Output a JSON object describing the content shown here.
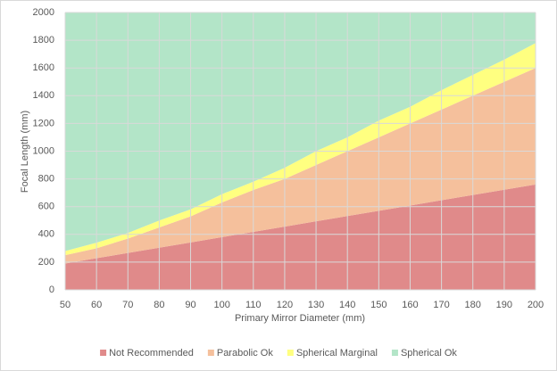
{
  "chart_data": {
    "type": "stacked-area",
    "x_label": "Primary Mirror Diameter (mm)",
    "y_label": "Focal Length (mm)",
    "x": [
      50,
      60,
      70,
      80,
      90,
      100,
      110,
      120,
      130,
      140,
      150,
      160,
      170,
      180,
      190,
      200
    ],
    "series": [
      {
        "name": "Not Recommended",
        "color": "#e08a8a",
        "values": [
          190,
          228,
          266,
          304,
          342,
          380,
          418,
          456,
          494,
          532,
          570,
          608,
          646,
          684,
          722,
          760
        ]
      },
      {
        "name": "Parabolic Ok",
        "color": "#f5c09c",
        "values": [
          60,
          72,
          104,
          146,
          188,
          250,
          302,
          344,
          406,
          468,
          530,
          592,
          654,
          716,
          778,
          840
        ]
      },
      {
        "name": "Spherical Marginal",
        "color": "#ffff80",
        "values": [
          30,
          40,
          40,
          50,
          50,
          60,
          60,
          80,
          100,
          100,
          120,
          120,
          140,
          150,
          160,
          180
        ]
      },
      {
        "name": "Spherical Ok",
        "color": "#b3e5c8",
        "values": [
          1720,
          1660,
          1590,
          1500,
          1420,
          1310,
          1220,
          1120,
          1000,
          900,
          780,
          680,
          560,
          450,
          340,
          220
        ]
      }
    ],
    "xlim": [
      50,
      200
    ],
    "xticks": [
      50,
      60,
      70,
      80,
      90,
      100,
      110,
      120,
      130,
      140,
      150,
      160,
      170,
      180,
      190,
      200
    ],
    "ylim": [
      0,
      2000
    ],
    "yticks": [
      0,
      200,
      400,
      600,
      800,
      1000,
      1200,
      1400,
      1600,
      1800,
      2000
    ],
    "grid": true,
    "legend": "bottom"
  }
}
